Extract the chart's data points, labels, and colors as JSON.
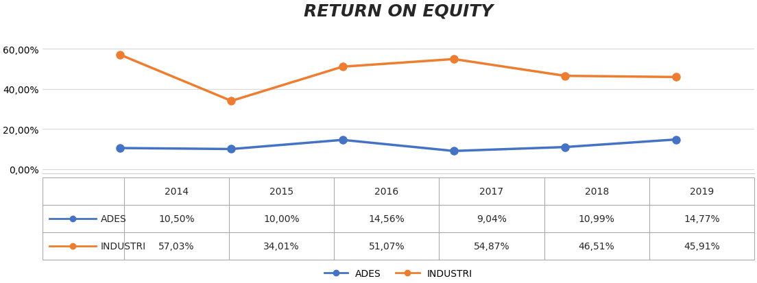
{
  "title": "RETURN ON EQUITY",
  "years": [
    2014,
    2015,
    2016,
    2017,
    2018,
    2019
  ],
  "ades_values": [
    0.105,
    0.1,
    0.1456,
    0.0904,
    0.1099,
    0.1477
  ],
  "industri_values": [
    0.5703,
    0.3401,
    0.5107,
    0.5487,
    0.4651,
    0.4591
  ],
  "ades_label": "ADES",
  "industri_label": "INDUSTRI",
  "ades_color": "#4472C4",
  "industri_color": "#ED7D31",
  "table_ades": [
    "10,50%",
    "10,00%",
    "14,56%",
    "9,04%",
    "10,99%",
    "14,77%"
  ],
  "table_industri": [
    "57,03%",
    "34,01%",
    "51,07%",
    "54,87%",
    "46,51%",
    "45,91%"
  ],
  "yticks": [
    0.0,
    0.2,
    0.4,
    0.6
  ],
  "ytick_labels": [
    "0,00%",
    "20,00%",
    "40,00%",
    "60,00%"
  ],
  "background_color": "#FFFFFF",
  "grid_color": "#D9D9D9",
  "title_fontsize": 18,
  "axis_fontsize": 10,
  "table_fontsize": 10,
  "legend_fontsize": 10,
  "marker_size": 8,
  "line_width": 2.5
}
